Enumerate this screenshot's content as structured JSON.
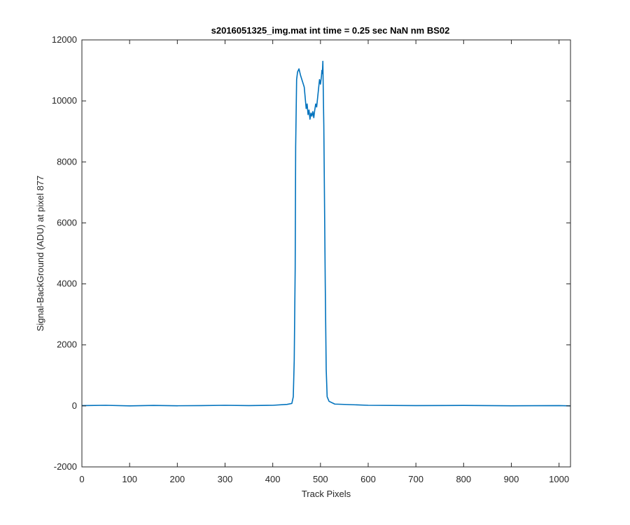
{
  "chart_data": {
    "type": "line",
    "title": "s2016051325_img.mat int time = 0.25 sec  NaN nm BS02",
    "xlabel": "Track Pixels",
    "ylabel": "Signal-BackGround (ADU) at pixel 877",
    "xlim": [
      0,
      1024
    ],
    "ylim": [
      -2000,
      12000
    ],
    "xticks": [
      0,
      100,
      200,
      300,
      400,
      500,
      600,
      700,
      800,
      900,
      1000
    ],
    "yticks": [
      -2000,
      0,
      2000,
      4000,
      6000,
      8000,
      10000,
      12000
    ],
    "xtick_labels": [
      "0",
      "100",
      "200",
      "300",
      "400",
      "500",
      "600",
      "700",
      "800",
      "900",
      "1000"
    ],
    "ytick_labels": [
      "-2000",
      "0",
      "2000",
      "4000",
      "6000",
      "8000",
      "10000",
      "12000"
    ],
    "grid": false,
    "series": [
      {
        "color": "#0072BD",
        "x": [
          0,
          50,
          100,
          150,
          200,
          250,
          300,
          350,
          400,
          430,
          440,
          443,
          445,
          447,
          448,
          450,
          452,
          455,
          458,
          460,
          463,
          466,
          468,
          470,
          472,
          474,
          476,
          478,
          480,
          482,
          484,
          486,
          488,
          490,
          492,
          494,
          496,
          498,
          500,
          502,
          503,
          504,
          505,
          506,
          507,
          508,
          510,
          512,
          514,
          518,
          530,
          600,
          700,
          800,
          900,
          1000,
          1024
        ],
        "y": [
          10,
          20,
          0,
          15,
          5,
          10,
          20,
          10,
          20,
          50,
          80,
          300,
          1500,
          4500,
          8500,
          10700,
          10950,
          11050,
          10850,
          10750,
          10600,
          10450,
          10100,
          9750,
          9900,
          9550,
          9700,
          9400,
          9600,
          9500,
          9650,
          9450,
          9700,
          9900,
          9800,
          10100,
          10400,
          10700,
          10550,
          10800,
          11000,
          10900,
          11300,
          10200,
          9200,
          7500,
          4000,
          1200,
          300,
          150,
          60,
          20,
          10,
          15,
          5,
          10,
          0
        ]
      }
    ]
  }
}
